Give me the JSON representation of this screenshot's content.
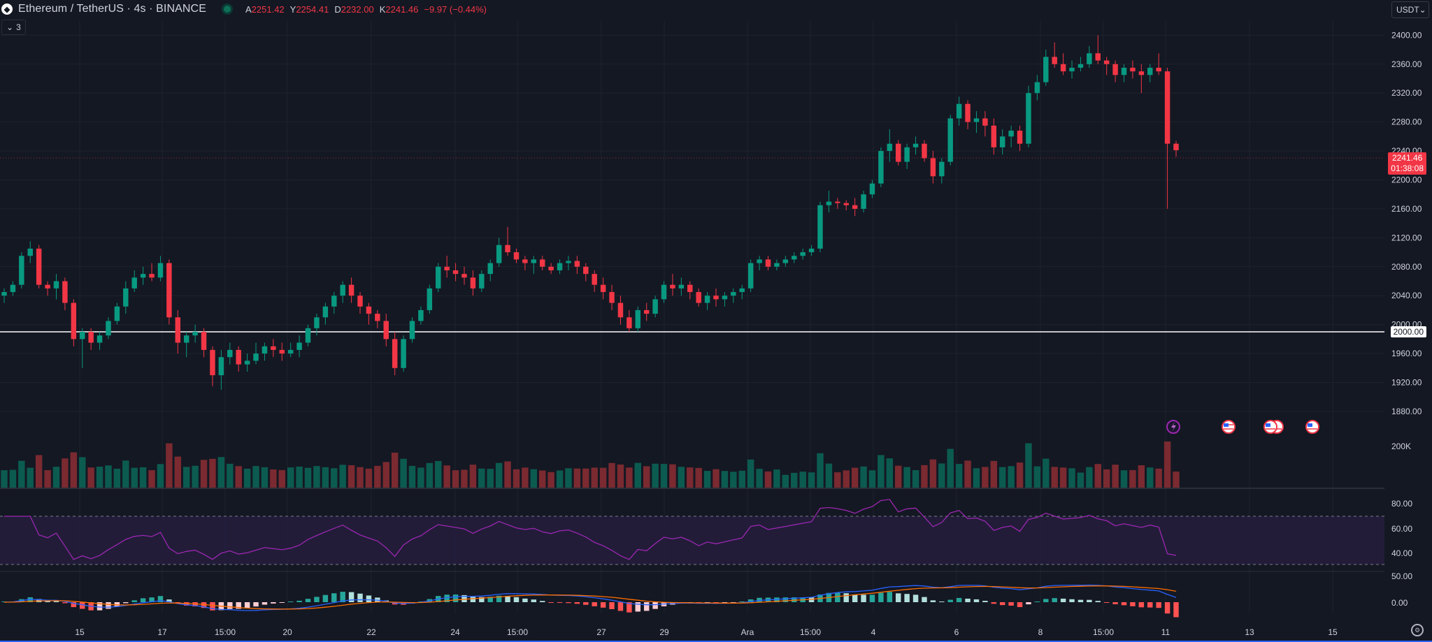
{
  "symbol": {
    "title": "Ethereum / TetherUS · 4s · BINANCE",
    "logo_glyph": "◆"
  },
  "ohlc": {
    "open_label": "A",
    "open": "2251.42",
    "high_label": "Y",
    "high": "2254.41",
    "low_label": "D",
    "low": "2232.00",
    "close_label": "K",
    "close": "2241.46",
    "change": "−9.97 (−0.44%)"
  },
  "indicators_collapsed": {
    "chevron": "⌄",
    "count": "3"
  },
  "currency": {
    "label": "USDT",
    "chevron": "⌄"
  },
  "price_axis": {
    "ticks": [
      "2400.00",
      "2360.00",
      "2320.00",
      "2280.00",
      "2240.00",
      "2200.00",
      "2160.00",
      "2120.00",
      "2080.00",
      "2040.00",
      "2000.00",
      "1960.00",
      "1920.00",
      "1880.00"
    ]
  },
  "last_price": {
    "price": "2241.46",
    "countdown": "01:38:08"
  },
  "horizontal_level": {
    "label": "2000.00",
    "value": 2000
  },
  "volume_axis": {
    "label": "200K"
  },
  "rsi_axis": {
    "ticks": [
      "80.00",
      "60.00",
      "40.00"
    ]
  },
  "macd_axis": {
    "ticks": [
      "50.00",
      "0.00"
    ]
  },
  "time_axis": {
    "labels": [
      "15",
      "17",
      "15:00",
      "20",
      "22",
      "24",
      "15:00",
      "27",
      "29",
      "Ara",
      "15:00",
      "4",
      "6",
      "8",
      "15:00",
      "11",
      "13",
      "15"
    ]
  },
  "event_icons": [
    "lightning-icon",
    "us-flag-icon",
    "us-flag-icon",
    "us-flag-icon",
    "us-flag-icon"
  ],
  "colors": {
    "background": "#141823",
    "up": "#089981",
    "down": "#f23645",
    "rsi_line": "#9c27b0",
    "rsi_band": "#2a1f45",
    "macd_line": "#2962ff",
    "signal_line": "#ff6d00",
    "grid": "#1e222d"
  },
  "chart_data": {
    "type": "candlestick",
    "title": "Ethereum / TetherUS · 4s · BINANCE",
    "y_range": [
      1850,
      2410
    ],
    "candles": [
      [
        2040,
        2050,
        2030,
        2045
      ],
      [
        2045,
        2060,
        2040,
        2055
      ],
      [
        2055,
        2100,
        2050,
        2095
      ],
      [
        2095,
        2115,
        2085,
        2105
      ],
      [
        2105,
        2110,
        2050,
        2055
      ],
      [
        2055,
        2060,
        2040,
        2050
      ],
      [
        2050,
        2070,
        2035,
        2060
      ],
      [
        2060,
        2065,
        2020,
        2030
      ],
      [
        2030,
        2035,
        1970,
        1980
      ],
      [
        1980,
        1995,
        1940,
        1990
      ],
      [
        1990,
        1995,
        1965,
        1975
      ],
      [
        1975,
        1990,
        1965,
        1985
      ],
      [
        1985,
        2010,
        1980,
        2005
      ],
      [
        2005,
        2030,
        2000,
        2025
      ],
      [
        2025,
        2060,
        2015,
        2050
      ],
      [
        2050,
        2075,
        2045,
        2065
      ],
      [
        2065,
        2080,
        2055,
        2070
      ],
      [
        2070,
        2085,
        2060,
        2065
      ],
      [
        2065,
        2095,
        2060,
        2085
      ],
      [
        2085,
        2090,
        2000,
        2010
      ],
      [
        2010,
        2020,
        1960,
        1975
      ],
      [
        1975,
        1990,
        1955,
        1985
      ],
      [
        1985,
        2000,
        1975,
        1990
      ],
      [
        1990,
        1995,
        1955,
        1965
      ],
      [
        1965,
        1970,
        1915,
        1930
      ],
      [
        1930,
        1965,
        1910,
        1955
      ],
      [
        1955,
        1975,
        1945,
        1965
      ],
      [
        1965,
        1970,
        1935,
        1945
      ],
      [
        1945,
        1960,
        1935,
        1950
      ],
      [
        1950,
        1975,
        1945,
        1960
      ],
      [
        1960,
        1975,
        1950,
        1970
      ],
      [
        1970,
        1980,
        1955,
        1965
      ],
      [
        1965,
        1975,
        1950,
        1960
      ],
      [
        1960,
        1975,
        1955,
        1965
      ],
      [
        1965,
        1985,
        1955,
        1975
      ],
      [
        1975,
        2000,
        1970,
        1995
      ],
      [
        1995,
        2015,
        1985,
        2010
      ],
      [
        2010,
        2030,
        2000,
        2025
      ],
      [
        2025,
        2045,
        2015,
        2040
      ],
      [
        2040,
        2060,
        2030,
        2055
      ],
      [
        2055,
        2065,
        2030,
        2040
      ],
      [
        2040,
        2045,
        2015,
        2025
      ],
      [
        2025,
        2030,
        2000,
        2015
      ],
      [
        2015,
        2020,
        1995,
        2005
      ],
      [
        2005,
        2015,
        1970,
        1980
      ],
      [
        1980,
        1990,
        1930,
        1940
      ],
      [
        1940,
        1985,
        1935,
        1980
      ],
      [
        1980,
        2010,
        1975,
        2005
      ],
      [
        2005,
        2025,
        2000,
        2020
      ],
      [
        2020,
        2055,
        2015,
        2050
      ],
      [
        2050,
        2085,
        2045,
        2080
      ],
      [
        2080,
        2095,
        2065,
        2075
      ],
      [
        2075,
        2085,
        2060,
        2070
      ],
      [
        2070,
        2080,
        2055,
        2065
      ],
      [
        2065,
        2075,
        2040,
        2050
      ],
      [
        2050,
        2075,
        2045,
        2070
      ],
      [
        2070,
        2090,
        2060,
        2085
      ],
      [
        2085,
        2120,
        2080,
        2110
      ],
      [
        2110,
        2135,
        2095,
        2100
      ],
      [
        2100,
        2105,
        2085,
        2090
      ],
      [
        2090,
        2095,
        2075,
        2085
      ],
      [
        2085,
        2095,
        2070,
        2090
      ],
      [
        2090,
        2095,
        2075,
        2080
      ],
      [
        2080,
        2085,
        2070,
        2075
      ],
      [
        2075,
        2090,
        2070,
        2085
      ],
      [
        2085,
        2095,
        2075,
        2088
      ],
      [
        2088,
        2095,
        2070,
        2080
      ],
      [
        2080,
        2085,
        2060,
        2070
      ],
      [
        2070,
        2075,
        2045,
        2055
      ],
      [
        2055,
        2065,
        2035,
        2045
      ],
      [
        2045,
        2055,
        2020,
        2030
      ],
      [
        2030,
        2040,
        2000,
        2010
      ],
      [
        2010,
        2020,
        1990,
        1995
      ],
      [
        1995,
        2025,
        1990,
        2020
      ],
      [
        2020,
        2030,
        2005,
        2015
      ],
      [
        2015,
        2040,
        2010,
        2035
      ],
      [
        2035,
        2060,
        2030,
        2055
      ],
      [
        2055,
        2070,
        2040,
        2050
      ],
      [
        2050,
        2065,
        2040,
        2055
      ],
      [
        2055,
        2060,
        2035,
        2045
      ],
      [
        2045,
        2050,
        2025,
        2030
      ],
      [
        2030,
        2045,
        2020,
        2040
      ],
      [
        2040,
        2050,
        2025,
        2035
      ],
      [
        2035,
        2045,
        2025,
        2040
      ],
      [
        2040,
        2050,
        2030,
        2045
      ],
      [
        2045,
        2055,
        2035,
        2050
      ],
      [
        2050,
        2090,
        2045,
        2085
      ],
      [
        2085,
        2095,
        2075,
        2090
      ],
      [
        2090,
        2095,
        2075,
        2080
      ],
      [
        2080,
        2090,
        2075,
        2085
      ],
      [
        2085,
        2095,
        2080,
        2090
      ],
      [
        2090,
        2100,
        2085,
        2095
      ],
      [
        2095,
        2105,
        2090,
        2100
      ],
      [
        2100,
        2110,
        2095,
        2105
      ],
      [
        2105,
        2170,
        2100,
        2165
      ],
      [
        2165,
        2185,
        2155,
        2170
      ],
      [
        2170,
        2175,
        2160,
        2168
      ],
      [
        2168,
        2172,
        2158,
        2165
      ],
      [
        2165,
        2175,
        2150,
        2160
      ],
      [
        2160,
        2185,
        2155,
        2180
      ],
      [
        2180,
        2200,
        2175,
        2195
      ],
      [
        2195,
        2245,
        2190,
        2240
      ],
      [
        2240,
        2270,
        2225,
        2250
      ],
      [
        2250,
        2255,
        2220,
        2225
      ],
      [
        2225,
        2250,
        2215,
        2245
      ],
      [
        2245,
        2260,
        2235,
        2250
      ],
      [
        2250,
        2255,
        2225,
        2230
      ],
      [
        2230,
        2240,
        2195,
        2205
      ],
      [
        2205,
        2230,
        2195,
        2225
      ],
      [
        2225,
        2290,
        2220,
        2285
      ],
      [
        2285,
        2315,
        2275,
        2305
      ],
      [
        2305,
        2310,
        2270,
        2280
      ],
      [
        2280,
        2295,
        2265,
        2285
      ],
      [
        2285,
        2295,
        2260,
        2275
      ],
      [
        2275,
        2285,
        2235,
        2245
      ],
      [
        2245,
        2270,
        2235,
        2260
      ],
      [
        2260,
        2275,
        2245,
        2268
      ],
      [
        2268,
        2275,
        2240,
        2250
      ],
      [
        2250,
        2330,
        2245,
        2320
      ],
      [
        2320,
        2345,
        2310,
        2335
      ],
      [
        2335,
        2380,
        2330,
        2370
      ],
      [
        2370,
        2390,
        2355,
        2360
      ],
      [
        2360,
        2375,
        2345,
        2350
      ],
      [
        2350,
        2365,
        2340,
        2355
      ],
      [
        2355,
        2370,
        2350,
        2360
      ],
      [
        2360,
        2385,
        2355,
        2375
      ],
      [
        2375,
        2400,
        2360,
        2365
      ],
      [
        2365,
        2370,
        2345,
        2360
      ],
      [
        2360,
        2365,
        2335,
        2345
      ],
      [
        2345,
        2360,
        2335,
        2355
      ],
      [
        2355,
        2365,
        2340,
        2350
      ],
      [
        2350,
        2360,
        2320,
        2345
      ],
      [
        2345,
        2360,
        2335,
        2355
      ],
      [
        2355,
        2375,
        2345,
        2350
      ],
      [
        2350,
        2355,
        2160,
        2250
      ],
      [
        2250,
        2254,
        2232,
        2241
      ]
    ]
  }
}
